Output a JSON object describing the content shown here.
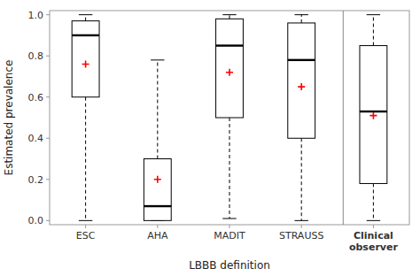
{
  "chart_data": {
    "type": "box",
    "xlabel": "LBBB definition",
    "ylabel": "Estimated prevalence",
    "categories": [
      "ESC",
      "AHA",
      "MADIT",
      "STRAUSS",
      "Clinical\nobserver"
    ],
    "boxes": [
      {
        "whislo": 0.0,
        "q1": 0.6,
        "med": 0.9,
        "q3": 0.97,
        "whishi": 1.0,
        "mean": 0.76
      },
      {
        "whislo": 0.0,
        "q1": 0.0,
        "med": 0.07,
        "q3": 0.3,
        "whishi": 0.78,
        "mean": 0.2
      },
      {
        "whislo": 0.01,
        "q1": 0.5,
        "med": 0.85,
        "q3": 0.98,
        "whishi": 1.0,
        "mean": 0.72
      },
      {
        "whislo": 0.0,
        "q1": 0.4,
        "med": 0.78,
        "q3": 0.96,
        "whishi": 1.0,
        "mean": 0.65
      },
      {
        "whislo": 0.0,
        "q1": 0.18,
        "med": 0.53,
        "q3": 0.85,
        "whishi": 1.0,
        "mean": 0.51
      }
    ],
    "color": "red",
    "ylim": [
      -0.02,
      1.02
    ],
    "yticks": [
      {
        "value": 0.0,
        "label": "0.0"
      },
      0.2,
      0.4,
      0.6,
      0.8,
      {
        "value": 1.0,
        "label": "1.0"
      }
    ],
    "grid": false
  }
}
